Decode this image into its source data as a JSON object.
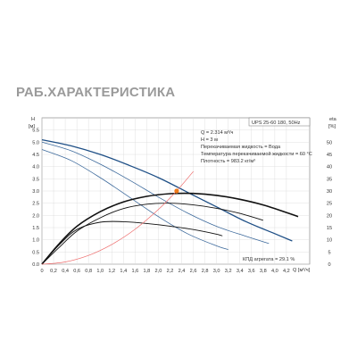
{
  "header": {
    "title": "РАБ.ХАРАКТЕРИСТИКА"
  },
  "chart_data": {
    "type": "line",
    "title": "",
    "model_label": "UPS 25-60 180, 50Hz",
    "xlabel": "Q [м³/ч]",
    "ylabel_left": "H",
    "ylabel_left_unit": "[м]",
    "ylabel_right": "eta",
    "ylabel_right_unit": "[%]",
    "xlim": [
      0,
      4.6
    ],
    "ylim_left": [
      0,
      6.0
    ],
    "ylim_right": [
      0,
      60
    ],
    "x_ticks": [
      "0",
      "0,2",
      "0,4",
      "0,6",
      "0,8",
      "1,0",
      "1,2",
      "1,4",
      "1,6",
      "1,8",
      "2,0",
      "2,2",
      "2,4",
      "2,6",
      "2,8",
      "3,0",
      "3,2",
      "3,4",
      "3,6",
      "3,8",
      "4,0",
      "4,2"
    ],
    "y_ticks_left": [
      "0.0",
      "0.5",
      "1.0",
      "1.5",
      "2.0",
      "2.5",
      "3.0",
      "3.5",
      "4.0",
      "4.5",
      "5.0",
      "5.5"
    ],
    "y_ticks_right": [
      "0",
      "5",
      "10",
      "15",
      "20",
      "25",
      "30",
      "35",
      "40",
      "45",
      "50"
    ],
    "grid": true,
    "info_lines": [
      "Q = 2.314 м³/ч",
      "H = 3 м",
      "Перекачиваемая жидкость = Вода",
      "Температура перекачиваемой жидкости = 60 °C",
      "Плотность = 983.2 кг/м³"
    ],
    "efficiency_label": "КПД агрегата = 29.1 %",
    "duty_point": {
      "x": 2.314,
      "y": 3.0
    },
    "colors": {
      "head_curve": "#1e4f86",
      "curve_blue": "#3d6a9c",
      "efficiency_curve": "#111111",
      "system_curve": "#ee6b6b",
      "duty_point": "#f07a1a",
      "grid": "#d8d8d8"
    },
    "series": [
      {
        "axis": "left",
        "color_key": "head_curve",
        "width": 1.3,
        "x": [
          0,
          0.5,
          1.0,
          1.5,
          2.0,
          2.5,
          3.0,
          3.5,
          4.0,
          4.3
        ],
        "y": [
          5.1,
          4.85,
          4.5,
          4.05,
          3.55,
          2.95,
          2.35,
          1.75,
          1.25,
          0.95
        ]
      },
      {
        "axis": "left",
        "color_key": "curve_blue",
        "width": 0.8,
        "x": [
          0,
          0.5,
          1.0,
          1.5,
          2.0,
          2.5,
          3.0,
          3.5,
          3.9
        ],
        "y": [
          5.0,
          4.65,
          4.1,
          3.45,
          2.75,
          2.1,
          1.55,
          1.15,
          0.85
        ]
      },
      {
        "axis": "left",
        "color_key": "curve_blue",
        "width": 0.8,
        "x": [
          0,
          0.5,
          1.0,
          1.5,
          2.0,
          2.5,
          3.0,
          3.2
        ],
        "y": [
          4.7,
          4.25,
          3.55,
          2.75,
          1.95,
          1.25,
          0.75,
          0.6
        ]
      },
      {
        "axis": "right",
        "color_key": "efficiency_curve",
        "width": 1.6,
        "x": [
          0,
          0.3,
          0.6,
          1.0,
          1.4,
          1.8,
          2.2,
          2.6,
          3.0,
          3.4,
          3.8,
          4.2,
          4.4
        ],
        "y": [
          0,
          8.5,
          15.5,
          21.5,
          25.5,
          27.8,
          28.9,
          29.0,
          28.2,
          26.6,
          24.3,
          21.2,
          19.5
        ]
      },
      {
        "axis": "right",
        "color_key": "efficiency_curve",
        "width": 0.9,
        "x": [
          0,
          0.3,
          0.6,
          1.0,
          1.4,
          1.8,
          2.2,
          2.6,
          3.0,
          3.4,
          3.8
        ],
        "y": [
          0,
          7.0,
          13.5,
          19.0,
          22.8,
          24.6,
          25.0,
          24.3,
          22.9,
          20.8,
          18.0
        ]
      },
      {
        "axis": "right",
        "color_key": "efficiency_curve",
        "width": 0.9,
        "x": [
          0,
          0.3,
          0.6,
          1.0,
          1.4,
          1.8,
          2.2,
          2.6,
          3.0,
          3.1
        ],
        "y": [
          0,
          8.0,
          14.2,
          17.2,
          17.4,
          16.7,
          15.6,
          14.2,
          12.3,
          11.6
        ]
      },
      {
        "axis": "left",
        "color_key": "system_curve",
        "width": 0.7,
        "x": [
          0,
          0.4,
          0.8,
          1.2,
          1.6,
          2.0,
          2.314,
          2.6
        ],
        "y": [
          0,
          0.09,
          0.36,
          0.81,
          1.43,
          2.24,
          3.0,
          3.8
        ]
      }
    ]
  }
}
